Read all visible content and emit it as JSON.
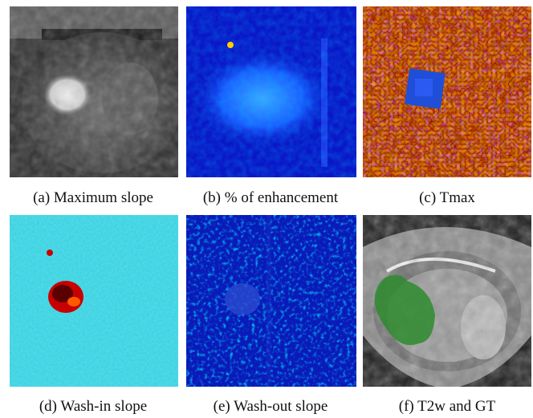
{
  "figure": {
    "panels": [
      {
        "id": "a",
        "caption": "(a) Maximum slope",
        "colormap": "gray"
      },
      {
        "id": "b",
        "caption": "(b) % of enhancement",
        "colormap": "jet"
      },
      {
        "id": "c",
        "caption": "(c) Tmax",
        "colormap": "jet"
      },
      {
        "id": "d",
        "caption": "(d) Wash-in slope",
        "colormap": "jet"
      },
      {
        "id": "e",
        "caption": "(e) Wash-out slope",
        "colormap": "jet"
      },
      {
        "id": "f",
        "caption": "(f) T2w and GT",
        "colormap": "gray",
        "overlay_color": "#2e8b2e"
      }
    ]
  }
}
